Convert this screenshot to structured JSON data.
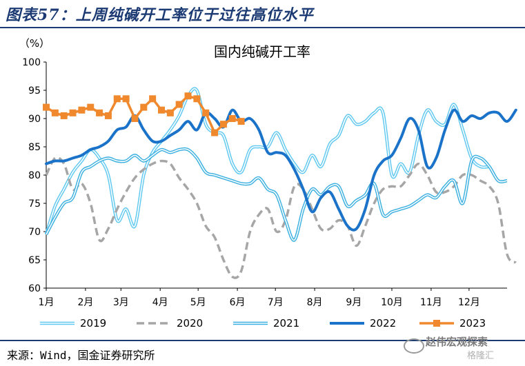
{
  "figure": {
    "title": "图表57：上周纯碱开工率位于过往高位水平",
    "source": "来源：Wind，国金证券研究所"
  },
  "watermark": {
    "line1": "赵伟宏观探索",
    "line2": "格隆汇"
  },
  "chart_data": {
    "type": "line",
    "title": "国内纯碱开工率",
    "unit_label": "（%）",
    "ylim": [
      60,
      100
    ],
    "yticks": [
      60,
      65,
      70,
      75,
      80,
      85,
      90,
      95,
      100
    ],
    "x_range": [
      0,
      52
    ],
    "xticks": [
      {
        "label": "1月",
        "x": 0
      },
      {
        "label": "2月",
        "x": 4.43
      },
      {
        "label": "3月",
        "x": 8.43
      },
      {
        "label": "4月",
        "x": 12.86
      },
      {
        "label": "5月",
        "x": 17.14
      },
      {
        "label": "6月",
        "x": 21.57
      },
      {
        "label": "7月",
        "x": 25.86
      },
      {
        "label": "8月",
        "x": 30.29
      },
      {
        "label": "9月",
        "x": 34.71
      },
      {
        "label": "10月",
        "x": 39.0
      },
      {
        "label": "11月",
        "x": 43.43
      },
      {
        "label": "12月",
        "x": 47.71
      }
    ],
    "legend_position": "bottom",
    "series": [
      {
        "name": "2019",
        "color": "#5fc8f0",
        "style": "double",
        "values": [
          69.5,
          74.5,
          77.5,
          80.5,
          82.5,
          84.5,
          83,
          80,
          72,
          74,
          71,
          80,
          84,
          86,
          88,
          90.5,
          94,
          95,
          89,
          87.5,
          87,
          82,
          80.5,
          84.5,
          85,
          85,
          87.5,
          84.5,
          82,
          80.5,
          83.5,
          81.5,
          85.5,
          87,
          90.5,
          89,
          89.5,
          91,
          91,
          80,
          82,
          80.5,
          87,
          91.5,
          89.5,
          89,
          92.5,
          88,
          83,
          81.5,
          81.5
        ]
      },
      {
        "name": "2020",
        "color": "#a6a6a6",
        "style": "dashed",
        "values": [
          80,
          83,
          82,
          77.5,
          78.5,
          75,
          68.5,
          70.5,
          74,
          77,
          79.5,
          81,
          82,
          82.5,
          82,
          79.5,
          77.5,
          75,
          71,
          69,
          65,
          62,
          63,
          70,
          73,
          74,
          70,
          72,
          78,
          77.5,
          74,
          70.5,
          70.5,
          72,
          71,
          67.5,
          71,
          75,
          77.5,
          78,
          78,
          80,
          82,
          80,
          77,
          77,
          78,
          80,
          80,
          79,
          78,
          75,
          66,
          64.5
        ]
      },
      {
        "name": "2021",
        "color": "#3bb0e0",
        "style": "double",
        "values": [
          69.5,
          72.5,
          75,
          76,
          80.5,
          81.5,
          82.5,
          83,
          82.5,
          82.5,
          83.5,
          82.5,
          83.5,
          84.5,
          84,
          84.5,
          84.5,
          83,
          80.5,
          80,
          79.5,
          79,
          78.5,
          78.5,
          79.5,
          77.5,
          76.5,
          72,
          68.5,
          74,
          77.5,
          76.5,
          78,
          78,
          74.5,
          75.5,
          76.5,
          78.5,
          73,
          73.5,
          74,
          74.5,
          75.5,
          76.5,
          76,
          78,
          79,
          75,
          82.5,
          83,
          81.5,
          79,
          79
        ]
      },
      {
        "name": "2022",
        "color": "#1a73c9",
        "style": "solid",
        "values": [
          82,
          82.5,
          82.5,
          83,
          83.5,
          84.5,
          85,
          86,
          88,
          88.5,
          90.5,
          88,
          86,
          86,
          87,
          88,
          89.5,
          88,
          91,
          90,
          88.5,
          91.5,
          89.5,
          90,
          88,
          84,
          84,
          83.5,
          81,
          77.5,
          73.5,
          76,
          77,
          74,
          71,
          70.5,
          74,
          80,
          82.5,
          83.5,
          86.5,
          90,
          88,
          81.5,
          83,
          88,
          91.5,
          89.5,
          90.5,
          90,
          91,
          91,
          89.5,
          91.5
        ]
      },
      {
        "name": "2023",
        "color": "#f0882e",
        "style": "marker",
        "values": [
          92,
          91,
          90.5,
          91,
          91.5,
          92,
          91,
          90.5,
          93.5,
          93.5,
          90,
          92,
          93.5,
          91.5,
          91,
          92.5,
          94,
          93.5,
          91,
          87.5,
          89,
          90,
          89.5
        ]
      }
    ]
  }
}
